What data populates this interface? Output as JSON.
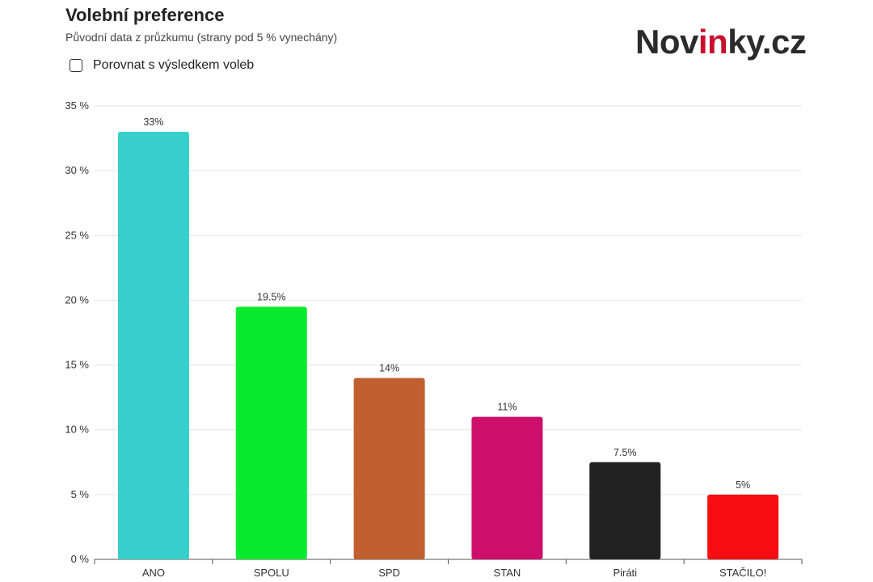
{
  "header": {
    "title": "Volební preference",
    "subtitle": "Původní data z průzkumu (strany pod 5 % vynechány)"
  },
  "controls": {
    "compare_label": "Porovnat s výsledkem voleb",
    "compare_checked": false
  },
  "logo": {
    "part1": "Nov",
    "accent": "in",
    "part2": "ky.cz"
  },
  "chart_data": {
    "type": "bar",
    "categories": [
      "ANO",
      "SPOLU",
      "SPD",
      "STAN",
      "Piráti",
      "STAČILO!"
    ],
    "values": [
      33,
      19.5,
      14,
      11,
      7.5,
      5
    ],
    "data_labels": [
      "33%",
      "19.5%",
      "14%",
      "11%",
      "7.5%",
      "5%"
    ],
    "colors": [
      "#36cfcb",
      "#08ea2e",
      "#c06030",
      "#cc0f6a",
      "#222222",
      "#f70d12"
    ],
    "ylim": [
      0,
      35
    ],
    "yticks": [
      0,
      5,
      10,
      15,
      20,
      25,
      30,
      35
    ],
    "ytick_labels": [
      "0 %",
      "5 %",
      "10 %",
      "15 %",
      "20 %",
      "25 %",
      "30 %",
      "35 %"
    ],
    "grid": true,
    "legend": "none"
  }
}
